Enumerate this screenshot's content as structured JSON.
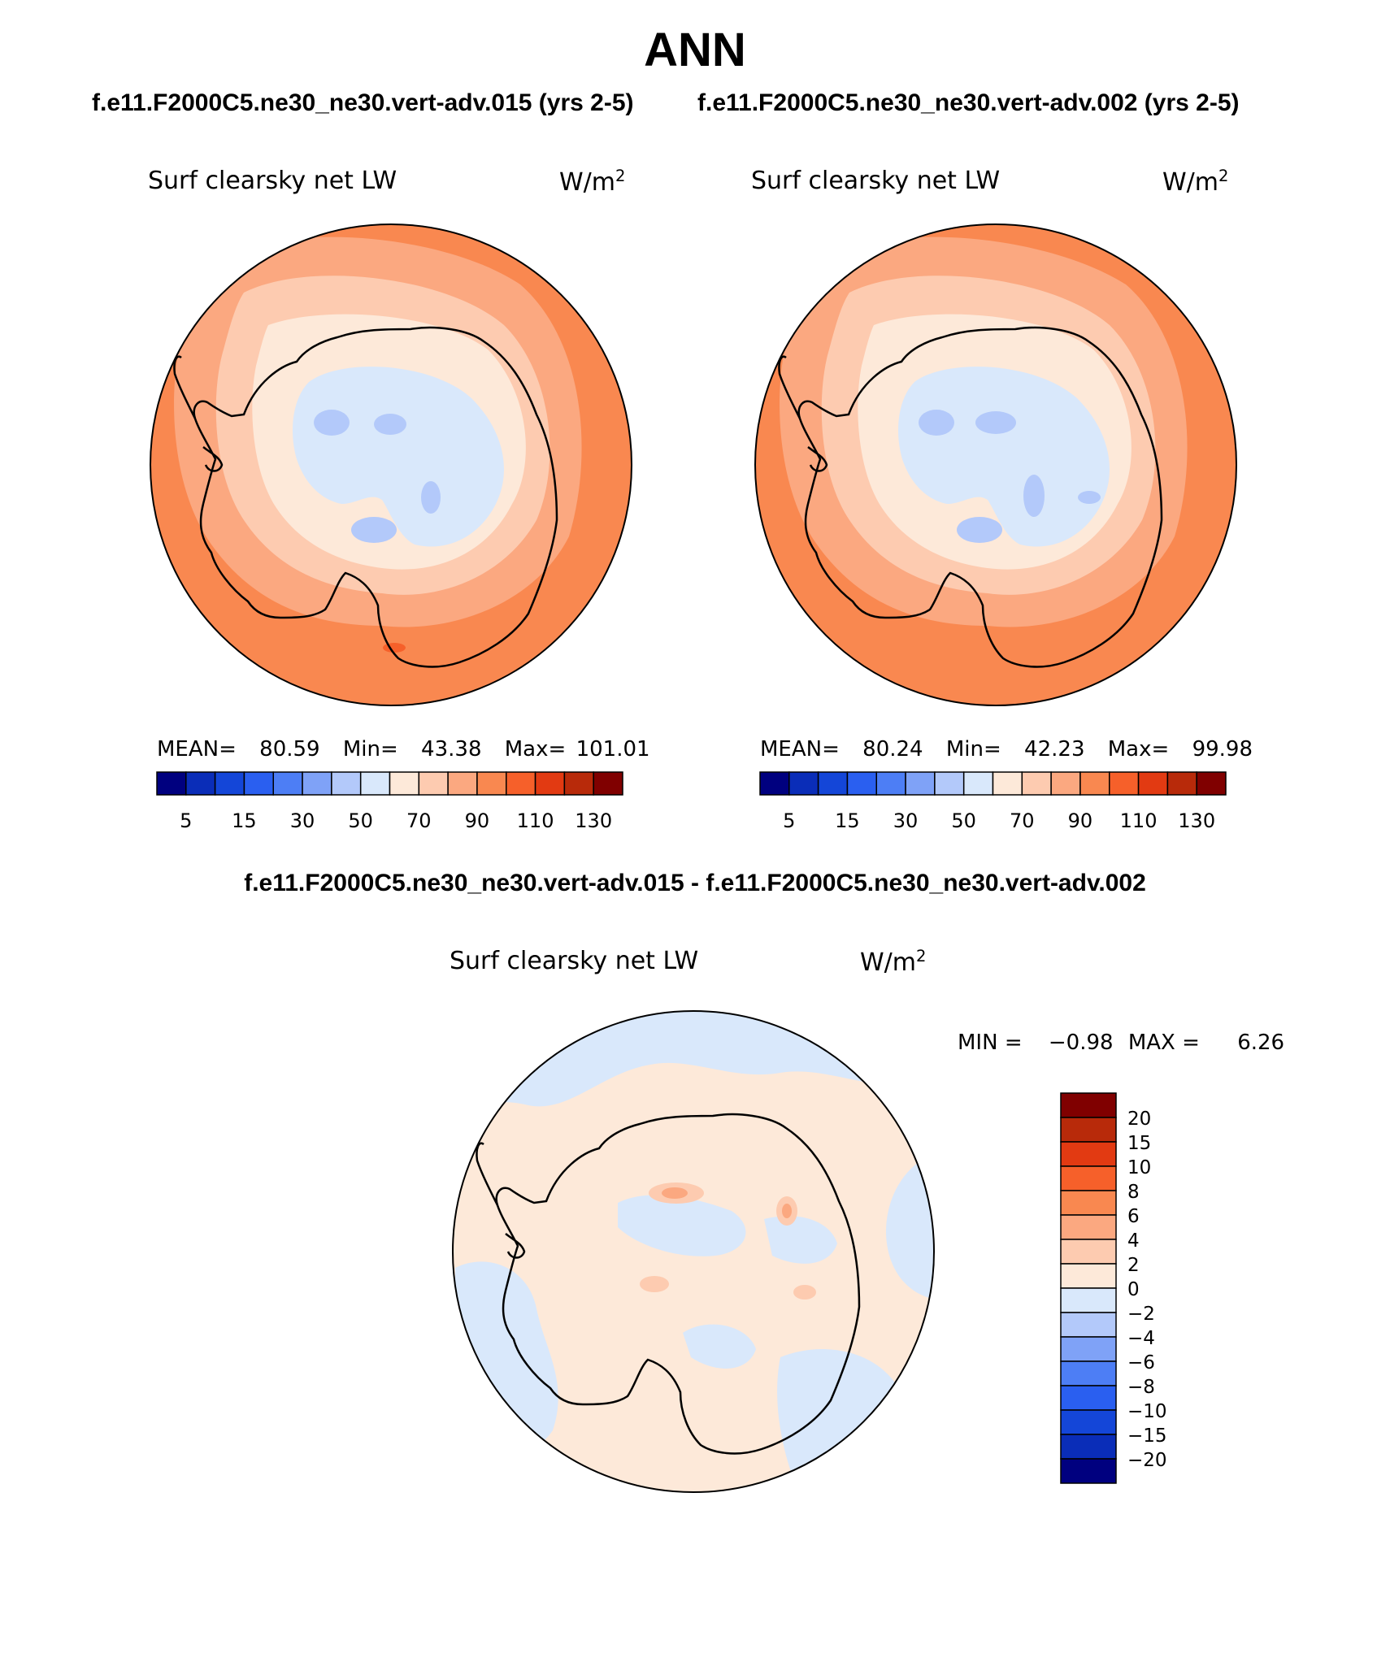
{
  "title": "ANN",
  "panels": [
    {
      "case": "f.e11.F2000C5.ne30_ne30.vert-adv.015 (yrs 2-5)",
      "variable": "Surf clearsky net LW",
      "units_base": "W/m",
      "units_exp": "2",
      "mean_label": "MEAN=",
      "mean": "80.59",
      "min_label": "Min=",
      "min": "43.38",
      "max_label": "Max=",
      "max": "101.01"
    },
    {
      "case": "f.e11.F2000C5.ne30_ne30.vert-adv.002 (yrs 2-5)",
      "variable": "Surf clearsky net LW",
      "units_base": "W/m",
      "units_exp": "2",
      "mean_label": "MEAN=",
      "mean": "80.24",
      "min_label": "Min=",
      "min": "42.23",
      "max_label": "Max=",
      "max": "99.98"
    }
  ],
  "diff": {
    "title": "f.e11.F2000C5.ne30_ne30.vert-adv.015 - f.e11.F2000C5.ne30_ne30.vert-adv.002",
    "variable": "Surf clearsky net LW",
    "units_base": "W/m",
    "units_exp": "2",
    "min_label": "MIN =",
    "min": "−0.98",
    "max_label": "MAX =",
    "max": "6.26"
  },
  "colorbar_abs": {
    "colors": [
      "#00007f",
      "#0a2db8",
      "#1446d8",
      "#2a5ff0",
      "#4d7ef5",
      "#7fa2f7",
      "#b3c9fa",
      "#d9e8fb",
      "#fde9d9",
      "#fdcbb0",
      "#fba880",
      "#f98850",
      "#f6602a",
      "#e23a12",
      "#b82a0a",
      "#800000"
    ],
    "ticks": [
      "5",
      "15",
      "30",
      "50",
      "70",
      "90",
      "110",
      "130"
    ]
  },
  "colorbar_diff": {
    "colors": [
      "#800000",
      "#b82a0a",
      "#e23a12",
      "#f6602a",
      "#f98850",
      "#fba880",
      "#fdcbb0",
      "#fde9d9",
      "#d9e8fb",
      "#b3c9fa",
      "#7fa2f7",
      "#4d7ef5",
      "#2a5ff0",
      "#1446d8",
      "#0a2db8",
      "#00007f"
    ],
    "ticks": [
      "20",
      "15",
      "10",
      "8",
      "6",
      "4",
      "2",
      "0",
      "−2",
      "−4",
      "−6",
      "−8",
      "−10",
      "−15",
      "−20"
    ]
  },
  "map_colors": {
    "outer": "#f98850",
    "band1": "#fba880",
    "band2": "#fdcbb0",
    "band3": "#fde9d9",
    "interior": "#d9e8fb",
    "interior_low": "#b3c9fa",
    "hot": "#f6602a",
    "diff_pos": "#fde9d9",
    "diff_neg": "#d9e8fb",
    "diff_pos2": "#fdcbb0",
    "diff_pos3": "#fba880"
  }
}
